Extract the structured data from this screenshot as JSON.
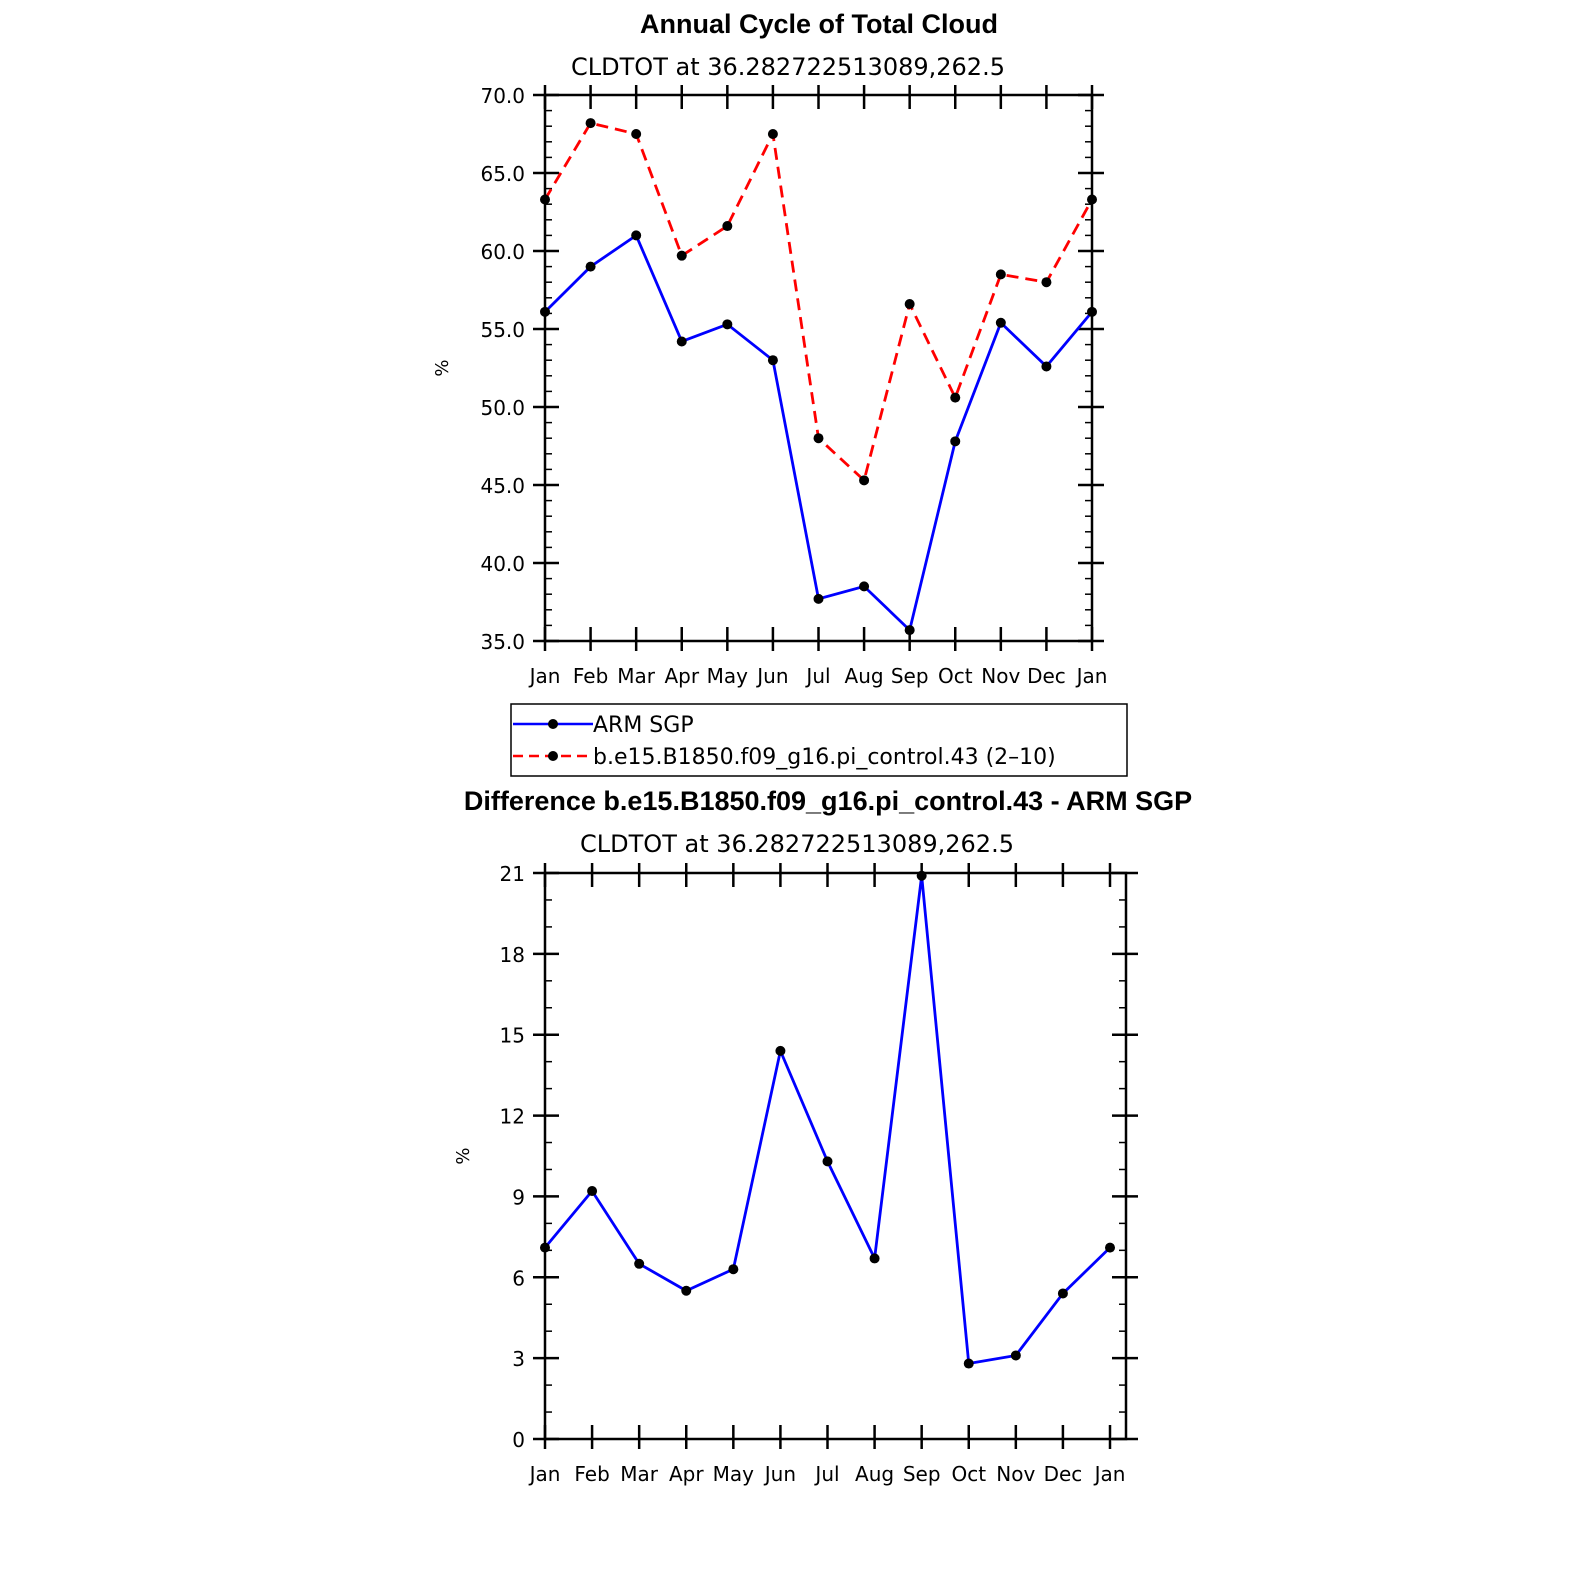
{
  "chart_data": [
    {
      "type": "line",
      "title": "Annual Cycle of Total Cloud",
      "subtitle": "CLDTOT at 36.282722513089,262.5",
      "ylabel": "%",
      "categories": [
        "Jan",
        "Feb",
        "Mar",
        "Apr",
        "May",
        "Jun",
        "Jul",
        "Aug",
        "Sep",
        "Oct",
        "Nov",
        "Dec",
        "Jan"
      ],
      "ylim": [
        35.0,
        70.0
      ],
      "yticks": [
        "35.0",
        "40.0",
        "45.0",
        "50.0",
        "55.0",
        "60.0",
        "65.0",
        "70.0"
      ],
      "series": [
        {
          "name": "ARM SGP",
          "color": "#0000ff",
          "dash": "solid",
          "values": [
            56.1,
            59.0,
            61.0,
            54.2,
            55.3,
            53.0,
            37.7,
            38.5,
            35.7,
            47.8,
            55.4,
            52.6,
            56.1
          ]
        },
        {
          "name": "b.e15.B1850.f09_g16.pi_control.43 (2–10)",
          "color": "#ff0000",
          "dash": "dashed",
          "values": [
            63.3,
            68.2,
            67.5,
            59.7,
            61.6,
            67.5,
            48.0,
            45.3,
            56.6,
            50.6,
            58.5,
            58.0,
            63.3
          ]
        }
      ],
      "legend": "below"
    },
    {
      "type": "line",
      "title": "Difference b.e15.B1850.f09_g16.pi_control.43 - ARM SGP",
      "subtitle": "CLDTOT at 36.282722513089,262.5",
      "ylabel": "%",
      "categories": [
        "Jan",
        "Feb",
        "Mar",
        "Apr",
        "May",
        "Jun",
        "Jul",
        "Aug",
        "Sep",
        "Oct",
        "Nov",
        "Dec",
        "Jan"
      ],
      "ylim": [
        0,
        21
      ],
      "yticks": [
        "0",
        "3",
        "6",
        "9",
        "12",
        "15",
        "18",
        "21"
      ],
      "series": [
        {
          "color": "#0000ff",
          "dash": "solid",
          "values": [
            7.1,
            9.2,
            6.5,
            5.5,
            6.3,
            14.4,
            10.3,
            6.7,
            20.9,
            2.8,
            3.1,
            5.4,
            7.1
          ]
        }
      ]
    }
  ]
}
